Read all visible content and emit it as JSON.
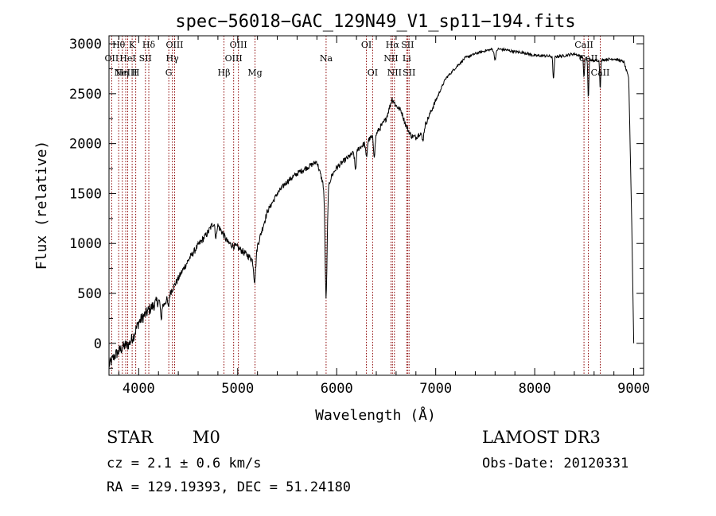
{
  "chart_data": {
    "type": "line",
    "title": "spec−56018−GAC_129N49_V1_sp11−194.fits",
    "xlabel": "Wavelength (Å)",
    "ylabel": "Flux (relative)",
    "xlim": [
      3700,
      9100
    ],
    "ylim": [
      -320,
      3080
    ],
    "x_ticks": [
      4000,
      5000,
      6000,
      7000,
      8000,
      9000
    ],
    "y_ticks": [
      0,
      500,
      1000,
      1500,
      2000,
      2500,
      3000
    ],
    "grid": false,
    "line_color": "#000000",
    "marker_color": "#8b0000",
    "spectrum_anchors": [
      [
        3700,
        -220
      ],
      [
        3760,
        -120
      ],
      [
        3800,
        -80
      ],
      [
        3850,
        -30
      ],
      [
        3900,
        -10
      ],
      [
        3950,
        80
      ],
      [
        4000,
        210
      ],
      [
        4100,
        330
      ],
      [
        4200,
        430
      ],
      [
        4250,
        380
      ],
      [
        4300,
        470
      ],
      [
        4400,
        650
      ],
      [
        4500,
        830
      ],
      [
        4600,
        980
      ],
      [
        4700,
        1110
      ],
      [
        4750,
        1200
      ],
      [
        4800,
        1180
      ],
      [
        4850,
        1100
      ],
      [
        4900,
        1010
      ],
      [
        4950,
        980
      ],
      [
        5000,
        960
      ],
      [
        5100,
        880
      ],
      [
        5170,
        820
      ],
      [
        5200,
        980
      ],
      [
        5300,
        1320
      ],
      [
        5400,
        1500
      ],
      [
        5500,
        1620
      ],
      [
        5600,
        1700
      ],
      [
        5700,
        1760
      ],
      [
        5800,
        1820
      ],
      [
        5890,
        1500
      ],
      [
        5950,
        1680
      ],
      [
        6000,
        1760
      ],
      [
        6100,
        1850
      ],
      [
        6200,
        1930
      ],
      [
        6300,
        2020
      ],
      [
        6400,
        2100
      ],
      [
        6500,
        2250
      ],
      [
        6560,
        2450
      ],
      [
        6600,
        2380
      ],
      [
        6650,
        2330
      ],
      [
        6700,
        2180
      ],
      [
        6750,
        2080
      ],
      [
        6800,
        2060
      ],
      [
        6850,
        2120
      ],
      [
        6900,
        2200
      ],
      [
        7000,
        2430
      ],
      [
        7100,
        2650
      ],
      [
        7200,
        2760
      ],
      [
        7300,
        2860
      ],
      [
        7400,
        2900
      ],
      [
        7500,
        2930
      ],
      [
        7600,
        2950
      ],
      [
        7700,
        2940
      ],
      [
        7800,
        2920
      ],
      [
        7900,
        2910
      ],
      [
        8000,
        2880
      ],
      [
        8100,
        2880
      ],
      [
        8200,
        2870
      ],
      [
        8300,
        2880
      ],
      [
        8400,
        2900
      ],
      [
        8500,
        2860
      ],
      [
        8600,
        2830
      ],
      [
        8700,
        2840
      ],
      [
        8800,
        2850
      ],
      [
        8900,
        2820
      ],
      [
        8950,
        2650
      ],
      [
        8980,
        1200
      ],
      [
        9000,
        0
      ]
    ],
    "absorption_features": [
      {
        "center": 5893,
        "depth": 1050,
        "width": 10
      },
      {
        "center": 5172,
        "depth": 200,
        "width": 10
      },
      {
        "center": 4227,
        "depth": 180,
        "width": 6
      },
      {
        "center": 4300,
        "depth": 120,
        "width": 6
      },
      {
        "center": 4780,
        "depth": 150,
        "width": 6
      },
      {
        "center": 6190,
        "depth": 180,
        "width": 8
      },
      {
        "center": 6300,
        "depth": 160,
        "width": 8
      },
      {
        "center": 6380,
        "depth": 200,
        "width": 8
      },
      {
        "center": 6870,
        "depth": 120,
        "width": 10
      },
      {
        "center": 7600,
        "depth": 100,
        "width": 10
      },
      {
        "center": 8190,
        "depth": 230,
        "width": 6
      },
      {
        "center": 8498,
        "depth": 200,
        "width": 5
      },
      {
        "center": 8542,
        "depth": 400,
        "width": 5
      },
      {
        "center": 8662,
        "depth": 280,
        "width": 5
      }
    ],
    "lines": [
      {
        "wave": 3727,
        "label": "OII",
        "row": 1
      },
      {
        "wave": 3798,
        "label": "Hθ",
        "row": 0
      },
      {
        "wave": 3835,
        "label": "Hη",
        "row": 2
      },
      {
        "wave": 3869,
        "label": "NeIII",
        "row": 2
      },
      {
        "wave": 3889,
        "label": "HeI",
        "row": 1
      },
      {
        "wave": 3934,
        "label": "K",
        "row": 0
      },
      {
        "wave": 3970,
        "label": "H",
        "row": 2
      },
      {
        "wave": 4068,
        "label": "SII",
        "row": 1
      },
      {
        "wave": 4102,
        "label": "Hδ",
        "row": 0
      },
      {
        "wave": 4304,
        "label": "G",
        "row": 2
      },
      {
        "wave": 4340,
        "label": "Hγ",
        "row": 1
      },
      {
        "wave": 4363,
        "label": "OIII",
        "row": 0
      },
      {
        "wave": 4861,
        "label": "Hβ",
        "row": 2
      },
      {
        "wave": 4959,
        "label": "OIII",
        "row": 1
      },
      {
        "wave": 5007,
        "label": "OIII",
        "row": 0
      },
      {
        "wave": 5175,
        "label": "Mg",
        "row": 2
      },
      {
        "wave": 5893,
        "label": "Na",
        "row": 1
      },
      {
        "wave": 6300,
        "label": "OI",
        "row": 0
      },
      {
        "wave": 6363,
        "label": "OI",
        "row": 2
      },
      {
        "wave": 6548,
        "label": "NII",
        "row": 1
      },
      {
        "wave": 6563,
        "label": "Hα",
        "row": 0
      },
      {
        "wave": 6583,
        "label": "NII",
        "row": 2
      },
      {
        "wave": 6708,
        "label": "Li",
        "row": 1
      },
      {
        "wave": 6716,
        "label": "SII",
        "row": 0
      },
      {
        "wave": 6731,
        "label": "SII",
        "row": 2
      },
      {
        "wave": 8498,
        "label": "CaII",
        "row": 0
      },
      {
        "wave": 8542,
        "label": "CaII",
        "row": 1
      },
      {
        "wave": 8662,
        "label": "CaII",
        "row": 2
      }
    ]
  },
  "info": {
    "object_type": "STAR",
    "subclass": "M0",
    "redshift": "cz = 2.1 ± 0.6 km/s",
    "coords": "RA = 129.19393, DEC =  51.24180",
    "survey": "LAMOST DR3",
    "obs_date": "Obs-Date: 20120331"
  }
}
